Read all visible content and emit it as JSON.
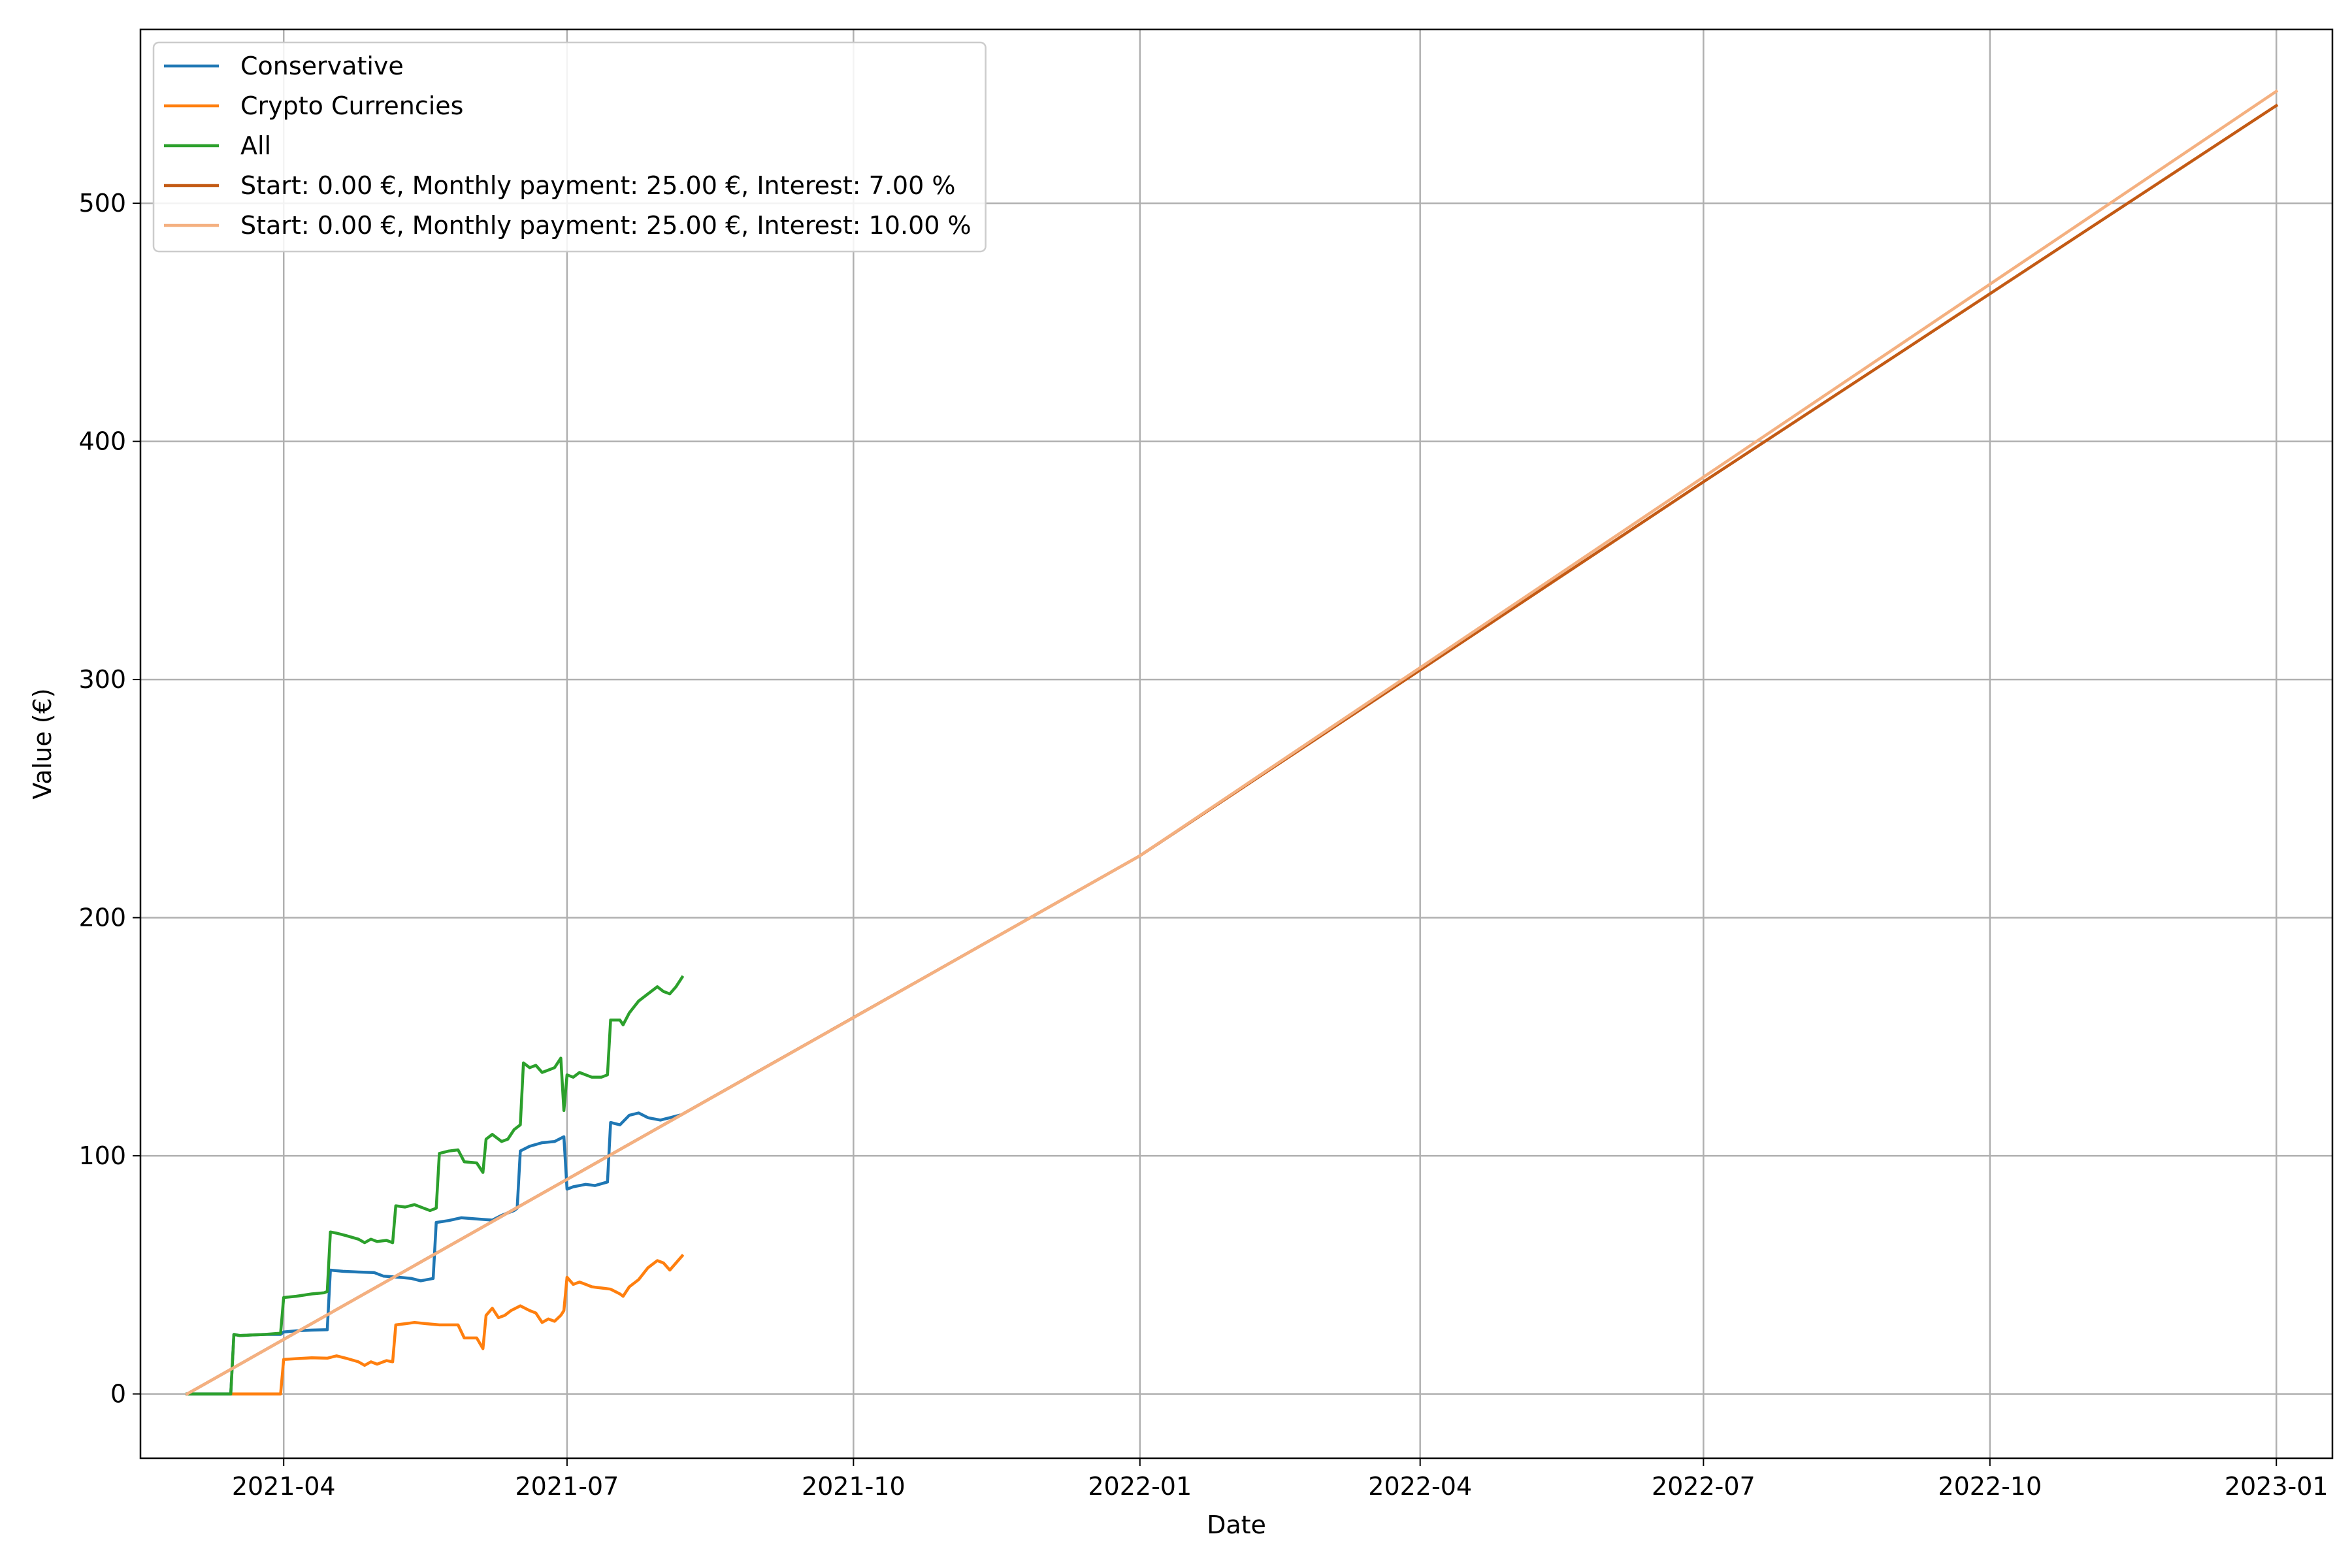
{
  "chart_data": {
    "type": "line",
    "xlabel": "Date",
    "ylabel": "Value (€)",
    "x_axis": {
      "type": "date",
      "min": "2021-02-14",
      "max": "2023-01-19",
      "ticks": [
        "2021-04-01",
        "2021-07-01",
        "2021-10-01",
        "2022-01-01",
        "2022-04-01",
        "2022-07-01",
        "2022-10-01",
        "2023-01-01"
      ],
      "tick_labels": [
        "2021-04",
        "2021-07",
        "2021-10",
        "2022-01",
        "2022-04",
        "2022-07",
        "2022-10",
        "2023-01"
      ]
    },
    "y_axis": {
      "min": -27,
      "max": 573,
      "ticks": [
        0,
        100,
        200,
        300,
        400,
        500
      ],
      "tick_labels": [
        "0",
        "100",
        "200",
        "300",
        "400",
        "500"
      ]
    },
    "grid": true,
    "legend_position": "top-left",
    "series": [
      {
        "name": "Conservative",
        "color": "#1f77b4",
        "points": [
          [
            "2021-03-01",
            0
          ],
          [
            "2021-03-15",
            0
          ],
          [
            "2021-03-16",
            25
          ],
          [
            "2021-03-18",
            24.5
          ],
          [
            "2021-03-22",
            24.8
          ],
          [
            "2021-03-26",
            25
          ],
          [
            "2021-03-31",
            25
          ],
          [
            "2021-04-01",
            26
          ],
          [
            "2021-04-05",
            26.5
          ],
          [
            "2021-04-10",
            26.8
          ],
          [
            "2021-04-15",
            27
          ],
          [
            "2021-04-16",
            52
          ],
          [
            "2021-04-20",
            51.5
          ],
          [
            "2021-04-25",
            51.2
          ],
          [
            "2021-04-30",
            51
          ],
          [
            "2021-05-03",
            49.5
          ],
          [
            "2021-05-08",
            49
          ],
          [
            "2021-05-12",
            48.5
          ],
          [
            "2021-05-15",
            47.5
          ],
          [
            "2021-05-19",
            48.5
          ],
          [
            "2021-05-20",
            72
          ],
          [
            "2021-05-24",
            72.8
          ],
          [
            "2021-05-28",
            74
          ],
          [
            "2021-06-02",
            73.5
          ],
          [
            "2021-06-07",
            73
          ],
          [
            "2021-06-10",
            75
          ],
          [
            "2021-06-14",
            77
          ],
          [
            "2021-06-15",
            78
          ],
          [
            "2021-06-16",
            102
          ],
          [
            "2021-06-19",
            104
          ],
          [
            "2021-06-23",
            105.5
          ],
          [
            "2021-06-27",
            106
          ],
          [
            "2021-06-30",
            108
          ],
          [
            "2021-07-01",
            86
          ],
          [
            "2021-07-03",
            87
          ],
          [
            "2021-07-07",
            88
          ],
          [
            "2021-07-10",
            87.5
          ],
          [
            "2021-07-14",
            89
          ],
          [
            "2021-07-15",
            114
          ],
          [
            "2021-07-18",
            113
          ],
          [
            "2021-07-21",
            117
          ],
          [
            "2021-07-24",
            118
          ],
          [
            "2021-07-27",
            116
          ],
          [
            "2021-07-31",
            115
          ],
          [
            "2021-08-03",
            116
          ],
          [
            "2021-08-06",
            117
          ]
        ]
      },
      {
        "name": "Crypto Currencies",
        "color": "#ff7f0e",
        "points": [
          [
            "2021-03-15",
            0
          ],
          [
            "2021-03-31",
            0
          ],
          [
            "2021-04-01",
            14.5
          ],
          [
            "2021-04-05",
            14.8
          ],
          [
            "2021-04-10",
            15.2
          ],
          [
            "2021-04-15",
            15
          ],
          [
            "2021-04-18",
            16
          ],
          [
            "2021-04-21",
            15
          ],
          [
            "2021-04-25",
            13.5
          ],
          [
            "2021-04-27",
            12
          ],
          [
            "2021-04-29",
            13.5
          ],
          [
            "2021-05-01",
            12.5
          ],
          [
            "2021-05-04",
            14
          ],
          [
            "2021-05-06",
            13.5
          ],
          [
            "2021-05-07",
            29
          ],
          [
            "2021-05-10",
            29.5
          ],
          [
            "2021-05-13",
            30
          ],
          [
            "2021-05-17",
            29.5
          ],
          [
            "2021-05-21",
            29
          ],
          [
            "2021-05-27",
            29
          ],
          [
            "2021-05-29",
            23.5
          ],
          [
            "2021-06-02",
            23.5
          ],
          [
            "2021-06-04",
            19
          ],
          [
            "2021-06-05",
            33
          ],
          [
            "2021-06-07",
            36
          ],
          [
            "2021-06-09",
            32
          ],
          [
            "2021-06-11",
            33
          ],
          [
            "2021-06-13",
            35
          ],
          [
            "2021-06-16",
            37
          ],
          [
            "2021-06-19",
            35
          ],
          [
            "2021-06-21",
            34
          ],
          [
            "2021-06-23",
            30
          ],
          [
            "2021-06-25",
            31.5
          ],
          [
            "2021-06-27",
            30.5
          ],
          [
            "2021-06-29",
            33
          ],
          [
            "2021-06-30",
            35
          ],
          [
            "2021-07-01",
            49
          ],
          [
            "2021-07-03",
            46
          ],
          [
            "2021-07-05",
            47
          ],
          [
            "2021-07-07",
            46
          ],
          [
            "2021-07-09",
            45
          ],
          [
            "2021-07-12",
            44.5
          ],
          [
            "2021-07-15",
            44
          ],
          [
            "2021-07-18",
            42
          ],
          [
            "2021-07-19",
            41
          ],
          [
            "2021-07-21",
            45
          ],
          [
            "2021-07-24",
            48
          ],
          [
            "2021-07-27",
            53
          ],
          [
            "2021-07-30",
            56
          ],
          [
            "2021-08-01",
            55
          ],
          [
            "2021-08-03",
            52
          ],
          [
            "2021-08-05",
            55
          ],
          [
            "2021-08-07",
            58
          ]
        ]
      },
      {
        "name": "All",
        "color": "#2ca02c",
        "points": [
          [
            "2021-03-01",
            0
          ],
          [
            "2021-03-15",
            0
          ],
          [
            "2021-03-16",
            25
          ],
          [
            "2021-03-18",
            24.5
          ],
          [
            "2021-03-22",
            24.8
          ],
          [
            "2021-03-26",
            25
          ],
          [
            "2021-03-31",
            25.5
          ],
          [
            "2021-04-01",
            40.5
          ],
          [
            "2021-04-05",
            41
          ],
          [
            "2021-04-10",
            42
          ],
          [
            "2021-04-14",
            42.5
          ],
          [
            "2021-04-15",
            43
          ],
          [
            "2021-04-16",
            68
          ],
          [
            "2021-04-18",
            67.5
          ],
          [
            "2021-04-21",
            66.5
          ],
          [
            "2021-04-25",
            65
          ],
          [
            "2021-04-27",
            63.5
          ],
          [
            "2021-04-29",
            65
          ],
          [
            "2021-05-01",
            64
          ],
          [
            "2021-05-04",
            64.5
          ],
          [
            "2021-05-06",
            63.5
          ],
          [
            "2021-05-07",
            79
          ],
          [
            "2021-05-10",
            78.5
          ],
          [
            "2021-05-13",
            79.5
          ],
          [
            "2021-05-16",
            78
          ],
          [
            "2021-05-18",
            77
          ],
          [
            "2021-05-20",
            78
          ],
          [
            "2021-05-21",
            101
          ],
          [
            "2021-05-24",
            102
          ],
          [
            "2021-05-27",
            102.5
          ],
          [
            "2021-05-29",
            97.5
          ],
          [
            "2021-06-02",
            97
          ],
          [
            "2021-06-04",
            93
          ],
          [
            "2021-06-05",
            107
          ],
          [
            "2021-06-07",
            109
          ],
          [
            "2021-06-10",
            106
          ],
          [
            "2021-06-12",
            107
          ],
          [
            "2021-06-14",
            111
          ],
          [
            "2021-06-16",
            113
          ],
          [
            "2021-06-17",
            139
          ],
          [
            "2021-06-19",
            137
          ],
          [
            "2021-06-21",
            138
          ],
          [
            "2021-06-23",
            135
          ],
          [
            "2021-06-25",
            136
          ],
          [
            "2021-06-27",
            137
          ],
          [
            "2021-06-29",
            141
          ],
          [
            "2021-06-30",
            119
          ],
          [
            "2021-07-01",
            134
          ],
          [
            "2021-07-03",
            133
          ],
          [
            "2021-07-05",
            135
          ],
          [
            "2021-07-07",
            134
          ],
          [
            "2021-07-09",
            133
          ],
          [
            "2021-07-12",
            133
          ],
          [
            "2021-07-14",
            134
          ],
          [
            "2021-07-15",
            157
          ],
          [
            "2021-07-18",
            157
          ],
          [
            "2021-07-19",
            155
          ],
          [
            "2021-07-21",
            160
          ],
          [
            "2021-07-24",
            165
          ],
          [
            "2021-07-27",
            168
          ],
          [
            "2021-07-30",
            171
          ],
          [
            "2021-08-01",
            169
          ],
          [
            "2021-08-03",
            168
          ],
          [
            "2021-08-05",
            171
          ],
          [
            "2021-08-07",
            175
          ]
        ]
      },
      {
        "name": "Start: 0.00 €, Monthly payment: 25.00 €, Interest: 7.00 %",
        "color": "#c35a14",
        "points": [
          [
            "2021-03-01",
            0
          ],
          [
            "2022-01-01",
            226
          ],
          [
            "2022-04-01",
            304
          ],
          [
            "2022-07-01",
            383
          ],
          [
            "2022-10-01",
            462
          ],
          [
            "2023-01-01",
            541
          ]
        ]
      },
      {
        "name": "Start: 0.00 €, Monthly payment: 25.00 €, Interest: 10.00 %",
        "color": "#f4b080",
        "points": [
          [
            "2021-03-01",
            0
          ],
          [
            "2021-10-01",
            158
          ],
          [
            "2022-01-01",
            226
          ],
          [
            "2022-04-01",
            305
          ],
          [
            "2022-07-01",
            385
          ],
          [
            "2022-10-01",
            466
          ],
          [
            "2023-01-01",
            547
          ]
        ]
      }
    ]
  }
}
